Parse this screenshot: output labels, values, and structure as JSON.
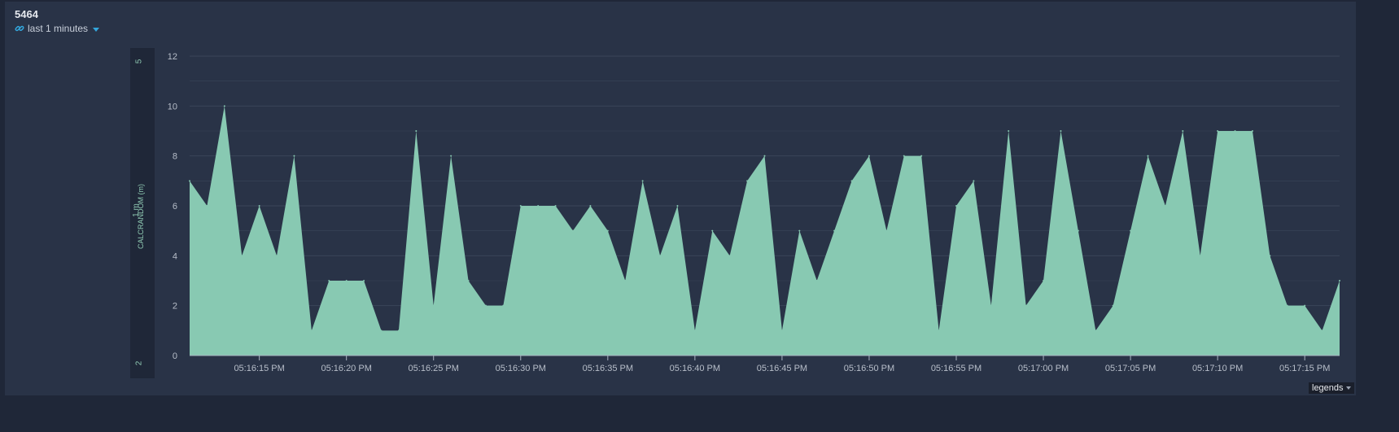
{
  "panel": {
    "title": "5464",
    "range_label": "last 1 minutes",
    "legends_label": "legends"
  },
  "sidebar": {
    "top_value": "5",
    "bottom_value": "2",
    "unit_label": "1 m",
    "series_label": "CALCRANDOM (m)"
  },
  "colors": {
    "area_fill": "#88c9b2",
    "grid": "#3a4558",
    "tick_text": "#b7bec9",
    "accent": "#33a6dc"
  },
  "icons": {
    "range": "link-icon",
    "dropdown": "chevron-down-icon"
  },
  "chart_data": {
    "type": "area",
    "title": "",
    "xlabel": "",
    "ylabel": "",
    "ylim": [
      0,
      12
    ],
    "yticks": [
      0,
      2,
      4,
      6,
      8,
      10,
      12
    ],
    "x_start": "05:16:11 PM",
    "x_end": "05:17:17 PM",
    "xtick_labels": [
      "05:16:15 PM",
      "05:16:20 PM",
      "05:16:25 PM",
      "05:16:30 PM",
      "05:16:35 PM",
      "05:16:40 PM",
      "05:16:45 PM",
      "05:16:50 PM",
      "05:16:55 PM",
      "05:17:00 PM",
      "05:17:05 PM",
      "05:17:10 PM",
      "05:17:15 PM"
    ],
    "series": [
      {
        "values": [
          7,
          6,
          10,
          4,
          6,
          4,
          8,
          1,
          3,
          3,
          3,
          1,
          1,
          9,
          2,
          8,
          3,
          2,
          2,
          6,
          6,
          6,
          5,
          6,
          5,
          3,
          7,
          4,
          6,
          1,
          5,
          4,
          7,
          8,
          1,
          5,
          3,
          5,
          7,
          8,
          5,
          8,
          8,
          1,
          6,
          7,
          2,
          9,
          2,
          3,
          9,
          5,
          1,
          2,
          5,
          8,
          6,
          9,
          4,
          9,
          9,
          9,
          4,
          2,
          2,
          1,
          3
        ]
      }
    ]
  }
}
